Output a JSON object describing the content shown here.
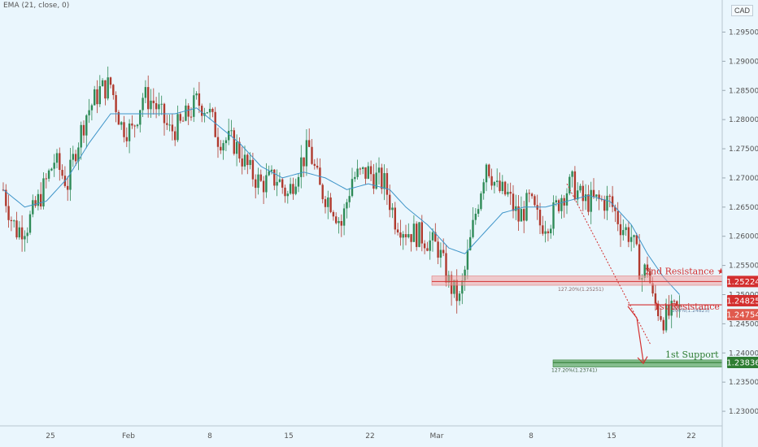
{
  "legend": "EMA (21, close, 0)",
  "currency": "CAD",
  "colors": {
    "up": "#2e8b57",
    "down": "#b03a2e",
    "ema": "#3f95c9",
    "resistance": "#d32f2f",
    "support": "#2e7d32",
    "zone": "#f0a4a4"
  },
  "chart_data": {
    "type": "candlestick",
    "ylim": [
      1.2275,
      1.3005
    ],
    "yticks": [
      1.23,
      1.235,
      1.24,
      1.245,
      1.25,
      1.255,
      1.26,
      1.265,
      1.27,
      1.275,
      1.28,
      1.285,
      1.29,
      1.295
    ],
    "ytick_labels": [
      "1.23000",
      "1.23500",
      "1.24000",
      "1.24500",
      "1.25000",
      "1.25500",
      "1.26000",
      "1.26500",
      "1.27000",
      "1.27500",
      "1.28000",
      "1.28500",
      "1.29000",
      "1.29500"
    ],
    "xticks": [
      "25",
      "Feb",
      "8",
      "15",
      "22",
      "Mar",
      "8",
      "15",
      "22"
    ],
    "levels": [
      {
        "name": "2nd Resistance ★★★",
        "value": 1.25224,
        "label": "1.25224",
        "color": "#d32f2f"
      },
      {
        "name": "1st Resistance ★★",
        "value": 1.24825,
        "label": "1.24825",
        "color": "#d32f2f"
      },
      {
        "name": "",
        "value": 1.24754,
        "label": "1.24754",
        "color": "#e05a4e"
      },
      {
        "name": "1st Support ★★",
        "value": 1.23836,
        "label": "1.23836",
        "color": "#2e7d32"
      }
    ],
    "fib_labels": [
      "127.20%(1.25251)",
      "100%(1.24825)",
      "127.20%(1.23741)"
    ],
    "anchors": [
      [
        0,
        1.268
      ],
      [
        3,
        1.263
      ],
      [
        5,
        1.261
      ],
      [
        9,
        1.262
      ],
      [
        14,
        1.267
      ],
      [
        19,
        1.273
      ],
      [
        24,
        1.269
      ],
      [
        27,
        1.275
      ],
      [
        31,
        1.281
      ],
      [
        36,
        1.285
      ],
      [
        40,
        1.286
      ],
      [
        44,
        1.279
      ],
      [
        48,
        1.278
      ],
      [
        52,
        1.284
      ],
      [
        56,
        1.283
      ],
      [
        62,
        1.278
      ],
      [
        66,
        1.279
      ],
      [
        72,
        1.283
      ],
      [
        76,
        1.282
      ],
      [
        80,
        1.277
      ],
      [
        86,
        1.276
      ],
      [
        92,
        1.271
      ],
      [
        96,
        1.269
      ],
      [
        102,
        1.27
      ],
      [
        106,
        1.267
      ],
      [
        110,
        1.272
      ],
      [
        114,
        1.275
      ],
      [
        118,
        1.268
      ],
      [
        122,
        1.266
      ],
      [
        126,
        1.262
      ],
      [
        130,
        1.27
      ],
      [
        136,
        1.271
      ],
      [
        142,
        1.269
      ],
      [
        146,
        1.263
      ],
      [
        150,
        1.261
      ],
      [
        156,
        1.26
      ],
      [
        162,
        1.258
      ],
      [
        166,
        1.252
      ],
      [
        170,
        1.249
      ],
      [
        172,
        1.254
      ],
      [
        176,
        1.264
      ],
      [
        180,
        1.273
      ],
      [
        184,
        1.268
      ],
      [
        188,
        1.267
      ],
      [
        192,
        1.263
      ],
      [
        196,
        1.266
      ],
      [
        200,
        1.262
      ],
      [
        204,
        1.263
      ],
      [
        208,
        1.267
      ],
      [
        212,
        1.269
      ],
      [
        216,
        1.266
      ],
      [
        220,
        1.266
      ],
      [
        226,
        1.266
      ],
      [
        230,
        1.262
      ],
      [
        234,
        1.26
      ],
      [
        238,
        1.253
      ],
      [
        240,
        1.255
      ],
      [
        242,
        1.249
      ],
      [
        246,
        1.246
      ],
      [
        252,
        1.2475
      ]
    ],
    "ema_anchors": [
      [
        0,
        1.268
      ],
      [
        8,
        1.265
      ],
      [
        16,
        1.266
      ],
      [
        24,
        1.27
      ],
      [
        32,
        1.276
      ],
      [
        40,
        1.281
      ],
      [
        48,
        1.281
      ],
      [
        56,
        1.281
      ],
      [
        64,
        1.281
      ],
      [
        72,
        1.282
      ],
      [
        80,
        1.279
      ],
      [
        88,
        1.276
      ],
      [
        96,
        1.272
      ],
      [
        104,
        1.27
      ],
      [
        112,
        1.271
      ],
      [
        120,
        1.27
      ],
      [
        128,
        1.268
      ],
      [
        136,
        1.269
      ],
      [
        144,
        1.268
      ],
      [
        150,
        1.265
      ],
      [
        158,
        1.262
      ],
      [
        166,
        1.258
      ],
      [
        172,
        1.257
      ],
      [
        178,
        1.26
      ],
      [
        186,
        1.264
      ],
      [
        194,
        1.265
      ],
      [
        202,
        1.265
      ],
      [
        210,
        1.266
      ],
      [
        218,
        1.267
      ],
      [
        226,
        1.266
      ],
      [
        234,
        1.262
      ],
      [
        240,
        1.257
      ],
      [
        246,
        1.253
      ],
      [
        252,
        1.25
      ]
    ]
  }
}
